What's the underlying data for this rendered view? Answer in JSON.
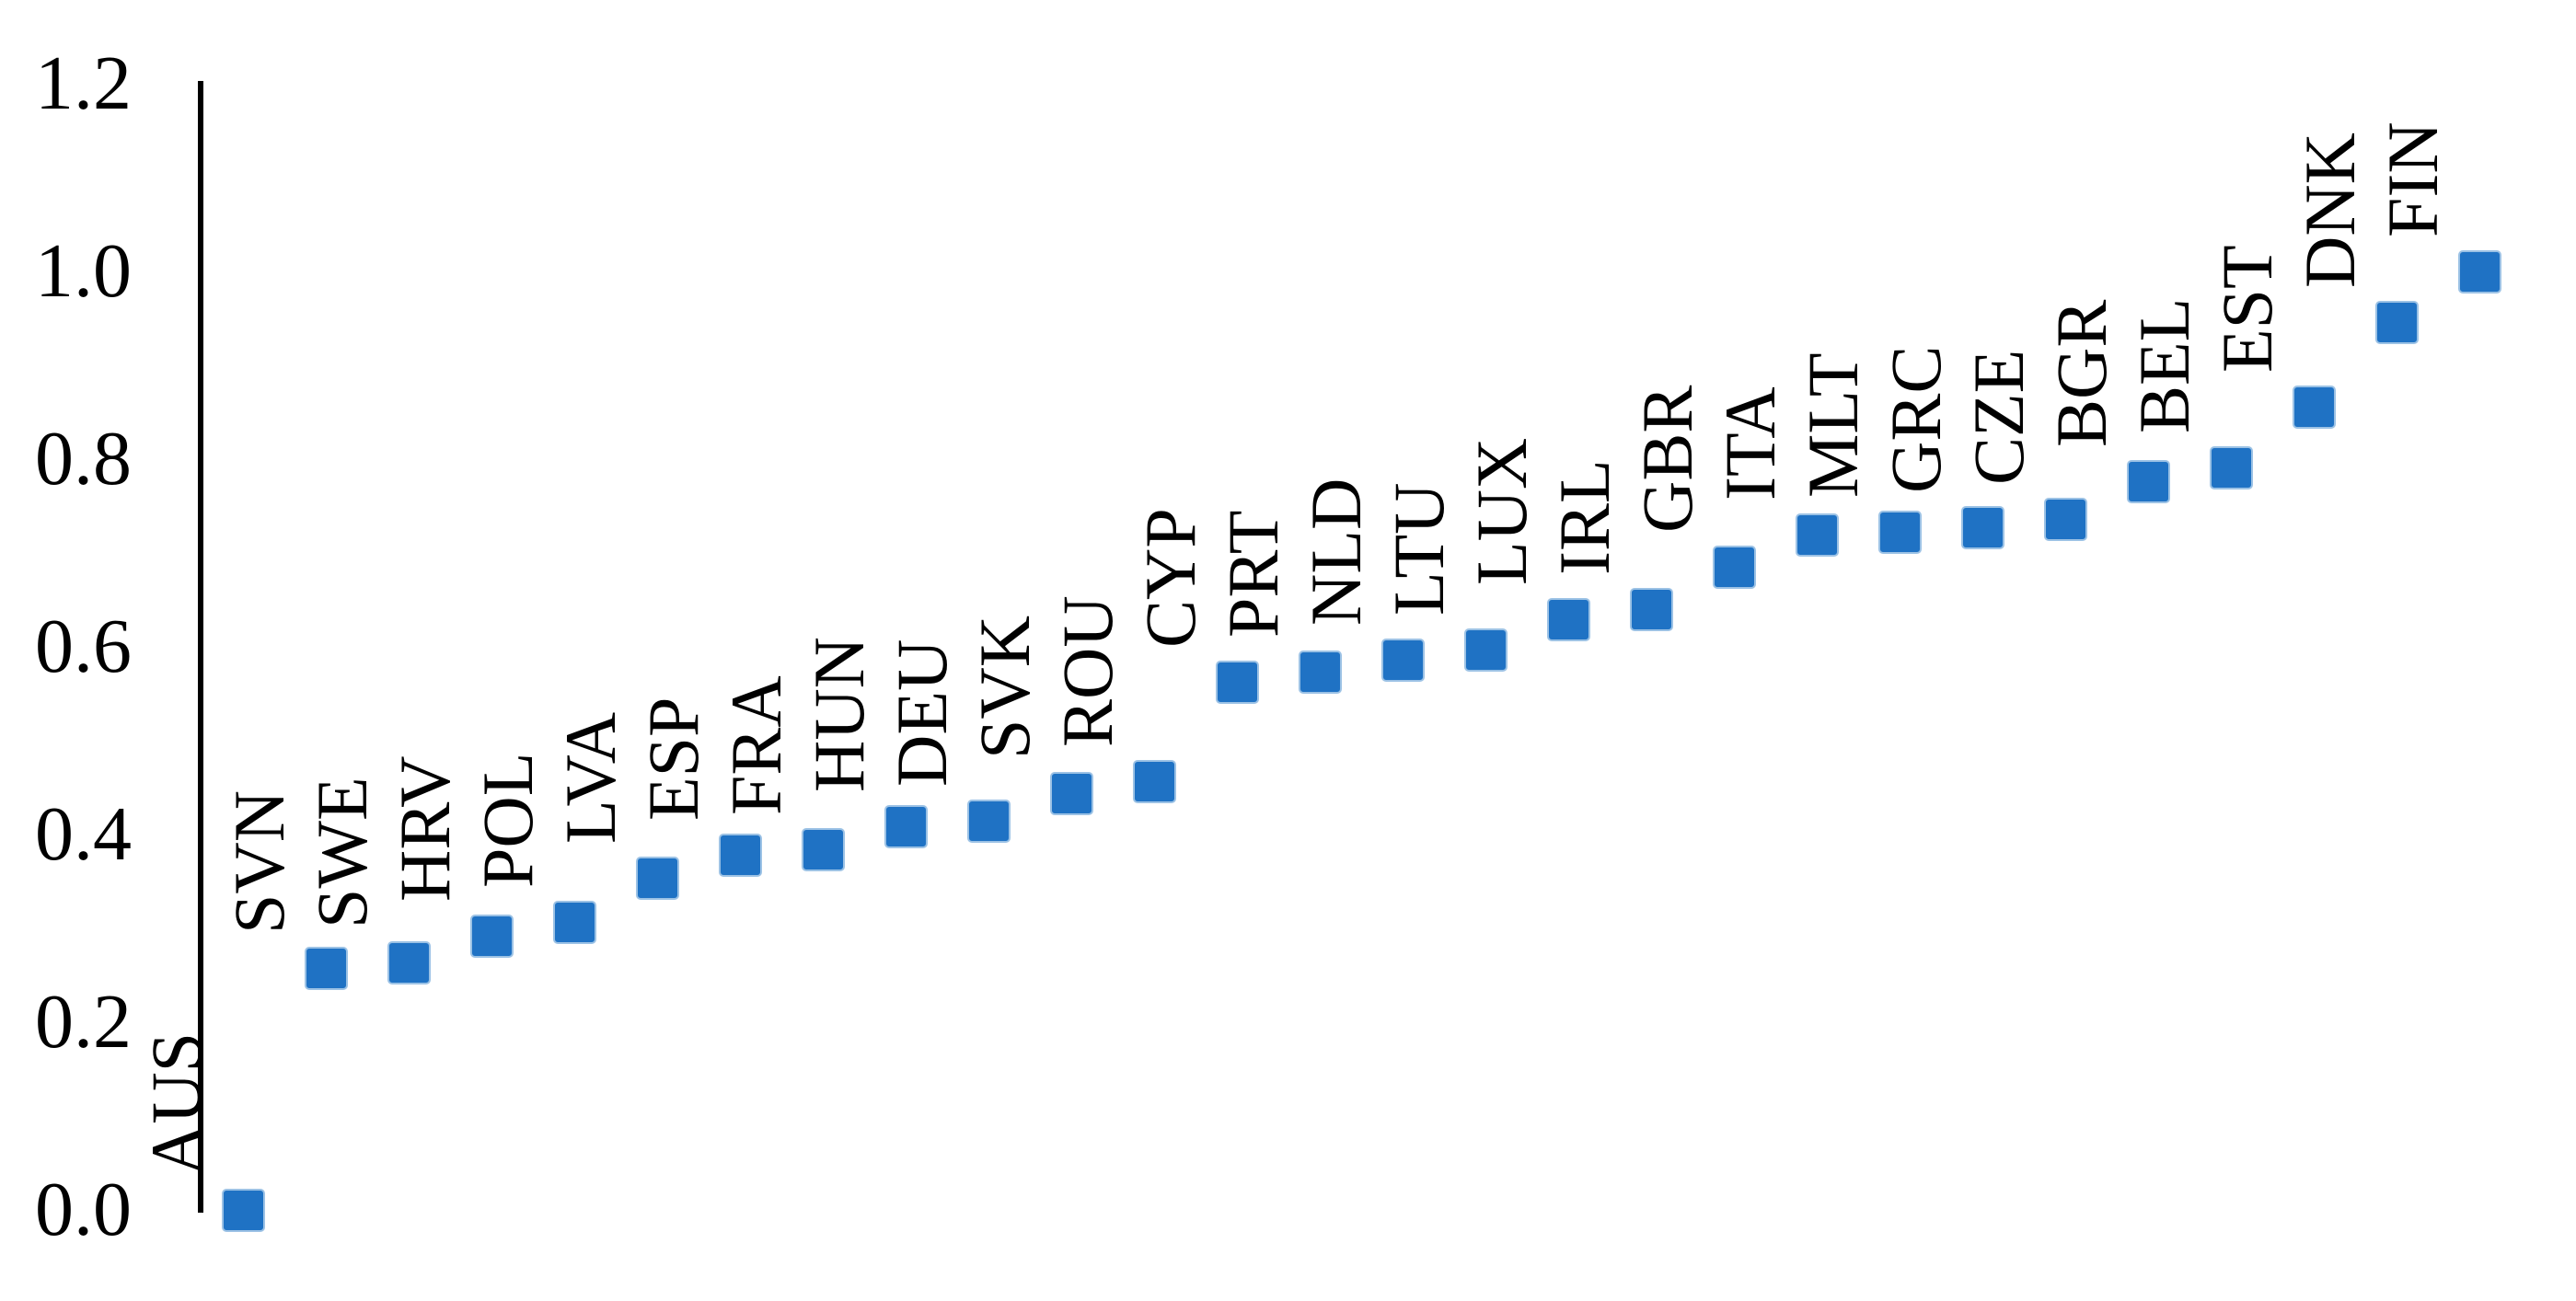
{
  "chart_data": {
    "type": "scatter",
    "title": "",
    "xlabel": "",
    "ylabel": "",
    "categories": [
      "AUS",
      "SVN",
      "SWE",
      "HRV",
      "POL",
      "LVA",
      "ESP",
      "FRA",
      "HUN",
      "DEU",
      "SVK",
      "ROU",
      "CYP",
      "PRT",
      "NLD",
      "LTU",
      "LUX",
      "IRL",
      "GBR",
      "ITA",
      "MLT",
      "GRC",
      "CZE",
      "BGR",
      "BEL",
      "EST",
      "DNK",
      "FIN"
    ],
    "values": [
      0.0,
      0.257,
      0.263,
      0.292,
      0.306,
      0.353,
      0.378,
      0.384,
      0.408,
      0.414,
      0.444,
      0.456,
      0.562,
      0.573,
      0.586,
      0.597,
      0.629,
      0.64,
      0.685,
      0.719,
      0.722,
      0.727,
      0.736,
      0.776,
      0.791,
      0.855,
      0.946,
      1.0
    ],
    "yticks": [
      "0.0",
      "0.2",
      "0.4",
      "0.6",
      "0.8",
      "1.0",
      "1.2"
    ],
    "ylim": [
      0,
      1.2
    ],
    "grid": false,
    "legend_position": "none",
    "category_label_rotation_deg": 90,
    "marker": {
      "shape": "square",
      "fill_color": "#1F72C4",
      "border_color": "#9CC2E5"
    },
    "axis_color": "#000000",
    "text_color": "#000000"
  }
}
